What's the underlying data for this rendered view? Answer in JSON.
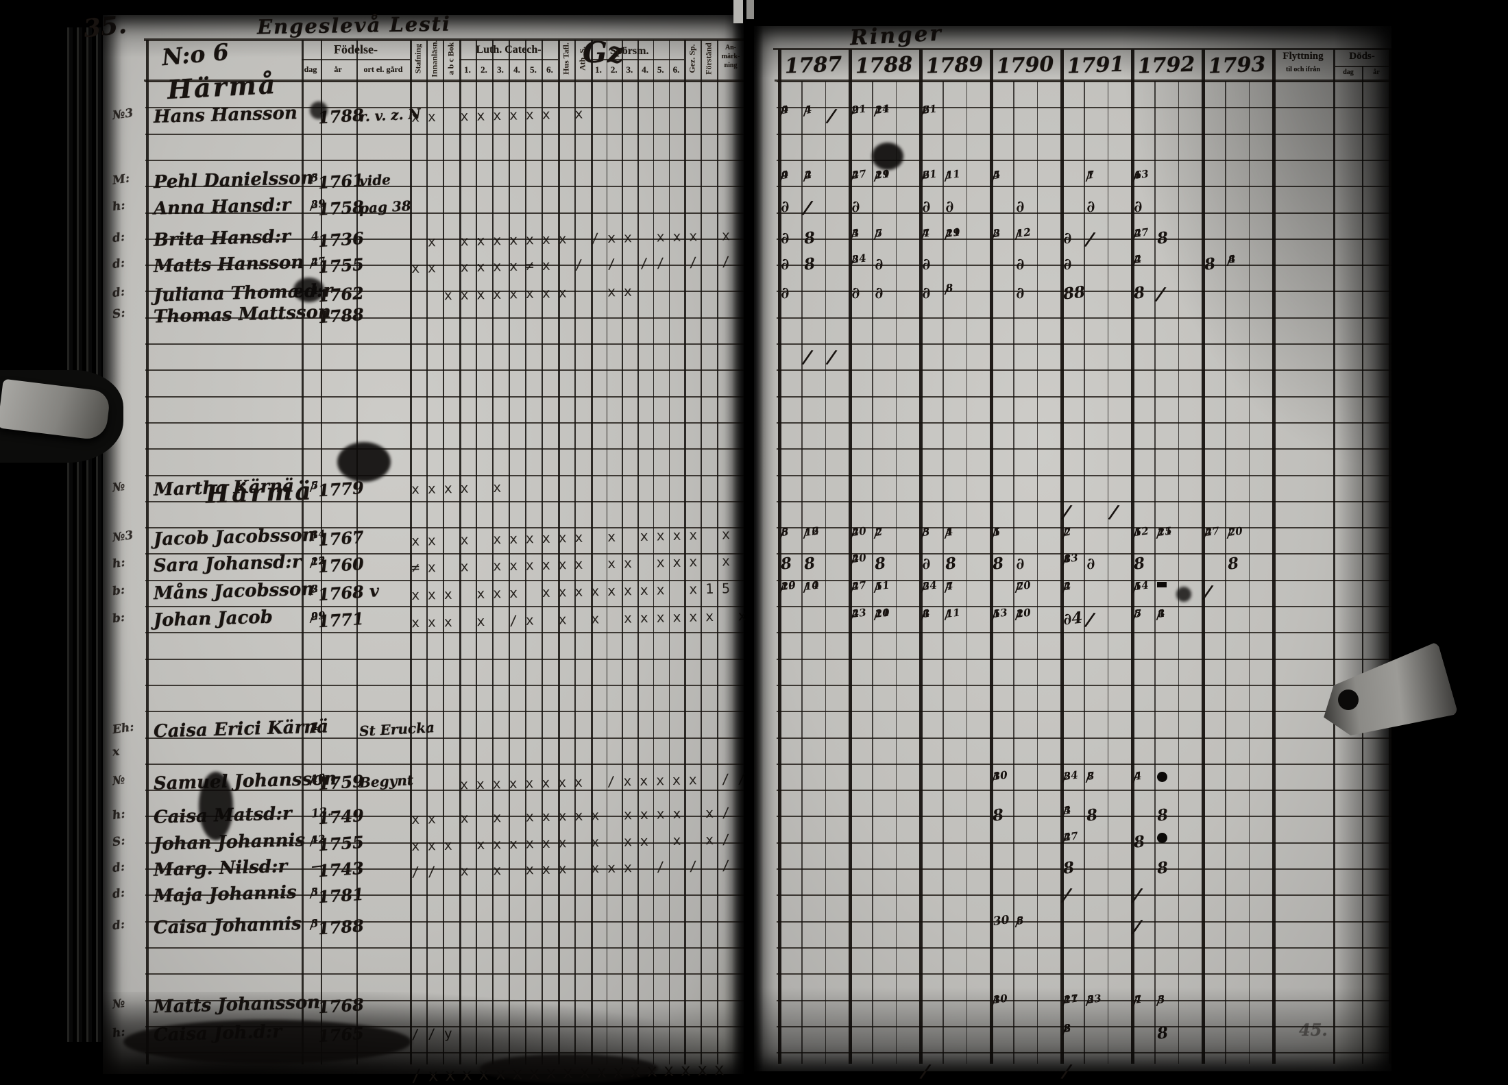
{
  "document": {
    "kind": "parish examination register spread",
    "left_page": {
      "page_number": "35.",
      "script_title": "Engeslevå Lesti",
      "household_no": "N:o 6",
      "farm_name": "Härmå",
      "farm_name_mid": "Härmä",
      "header": {
        "birth_group": "Födelse-",
        "birth_cols": [
          "dag",
          "år",
          "ort el. gård"
        ],
        "reading_cols": [
          "Stafning",
          "Innanläsn.",
          "a b c Bok"
        ],
        "luth_group": "Luth. Catech-",
        "luth_cols": [
          "1.",
          "2.",
          "3.",
          "4.",
          "5.",
          "6."
        ],
        "hus_tafl": "Hus Tafl.",
        "ath": "Ath. S.",
        "sporsm_script": "Gz",
        "sporsm_group": "Spörsm.",
        "sporsm_cols": [
          "1.",
          "2.",
          "3.",
          "4.",
          "5.",
          "6."
        ],
        "gez": "Gez. Sp.",
        "forstand": "Förständ",
        "anm_lines": [
          "An-",
          "märk-",
          "ning"
        ]
      },
      "rows": [
        {
          "row": 1.8,
          "m": "№3",
          "name": "Hans Hansson",
          "dag": "",
          "ar": "1788",
          "note": "r. v. z. N",
          "marks": "xx xxxxxx x",
          "start": 0
        },
        {
          "row": 4.3,
          "m": "M:",
          "name": "Pehl Danielsson",
          "dag": "5/3",
          "ar": "1761",
          "note": "vide",
          "marks": "",
          "start": 0
        },
        {
          "row": 5.3,
          "m": "h:",
          "name": "Anna Hansd:r",
          "dag": "29/3",
          "ar": "1758",
          "note": "pag 38",
          "marks": "",
          "start": 0
        },
        {
          "row": 6.5,
          "m": "d:",
          "name": "Brita Hansd:r",
          "dag": "4",
          "ar": "1736",
          "note": "",
          "marks": " x xxxxxxx /xx xxx x",
          "start": 0
        },
        {
          "row": 7.5,
          "m": "d:",
          "name": "Matts Hansson",
          "dag": "27/4",
          "ar": "1755",
          "note": "",
          "marks": "xx xxxx≠x / / // / /",
          "start": 0
        },
        {
          "row": 8.6,
          "m": "d:",
          "name": "Juliana Thomæd:r",
          "dag": "4/4",
          "ar": "1762",
          "note": "",
          "marks": "  xxxxxxxx  xx",
          "start": 0
        },
        {
          "row": 9.4,
          "m": "S:",
          "name": "Thomas Mattsson",
          "dag": "",
          "ar": "1788",
          "note": "",
          "marks": "",
          "start": 0
        },
        {
          "row": 16.0,
          "m": "№",
          "name": "Martha Kärnä",
          "dag": "5/7",
          "ar": "1779",
          "note": "",
          "marks": "xxxx x",
          "start": 0
        },
        {
          "row": 17.9,
          "m": "№3",
          "name": "Jacob Jacobsson",
          "dag": "14/3",
          "ar": "1767",
          "note": "",
          "marks": "xx x xxxxxx x xxxx x",
          "start": 0
        },
        {
          "row": 18.9,
          "m": "h:",
          "name": "Sara Johansd:r",
          "dag": "25/12",
          "ar": "1760",
          "note": "",
          "marks": "≠x x xxxxxx xx xxx x",
          "start": 0
        },
        {
          "row": 19.95,
          "m": "b:",
          "name": "Måns Jacobsson",
          "dag": "3/2",
          "ar": "1768 v",
          "note": "",
          "marks": "xxx xxx xxxxxxxx x15",
          "start": 0
        },
        {
          "row": 21.0,
          "m": "b:",
          "name": "Johan Jacob",
          "dag": "29/9",
          "ar": "1771",
          "note": "",
          "marks": "xxx x /x x x xxxxxx x",
          "start": 0
        },
        {
          "row": 25.2,
          "m": "Eh:",
          "name": "Caisa Erici Kärnä",
          "dag": "4/7",
          "ar": "",
          "note": "St Erucka",
          "marks": "",
          "start": 0
        },
        {
          "row": 26.1,
          "m": "x",
          "name": "",
          "dag": "",
          "ar": "",
          "note": "",
          "marks": "",
          "start": 0
        },
        {
          "row": 27.2,
          "m": "№",
          "name": "Samuel Johansson",
          "dag": "15/10",
          "ar": "1759",
          "note": "Begynt",
          "marks": "xxxxxxxx /xxxxx //",
          "start": 3
        },
        {
          "row": 28.5,
          "m": "h:",
          "name": "Caisa Matsd:r",
          "dag": "13.",
          "ar": "1749",
          "note": "",
          "marks": "xx x x xxxxx xxxx x/",
          "start": 0
        },
        {
          "row": 29.5,
          "m": "S:",
          "name": "Johan Johannis",
          "dag": "4/12",
          "ar": "1755",
          "note": "",
          "marks": "xxx xxxxxx x xx x x/",
          "start": 0
        },
        {
          "row": 30.5,
          "m": "d:",
          "name": "Marg. Nilsd:r",
          "dag": "—",
          "ar": "1743",
          "note": "",
          "marks": "// x x xxx xxx / / /",
          "start": 0
        },
        {
          "row": 31.5,
          "m": "d:",
          "name": "Maja Johannis",
          "dag": "3/5",
          "ar": "1781",
          "note": "",
          "marks": "",
          "start": 0
        },
        {
          "row": 32.7,
          "m": "d:",
          "name": "Caisa Johannis",
          "dag": "5/3",
          "ar": "1788",
          "note": "",
          "marks": "",
          "start": 0
        },
        {
          "row": 35.7,
          "m": "№",
          "name": "Matts Johansson",
          "dag": "",
          "ar": "1768",
          "note": "",
          "marks": "",
          "start": 0
        },
        {
          "row": 36.8,
          "m": "h:",
          "name": "Caisa Joh.d:r",
          "dag": "",
          "ar": "1765",
          "note": "",
          "marks": "//y",
          "start": 0
        },
        {
          "row": 38.2,
          "m": "",
          "name": "",
          "dag": "",
          "ar": "",
          "note": "",
          "marks": "/xxxxxxxxxxxxxxxxxx",
          "start": 0,
          "big": true
        }
      ]
    },
    "right_page": {
      "script_title": "Ringer",
      "years": [
        "1787",
        "1788",
        "1789",
        "1790",
        "1791",
        "1792",
        "1793"
      ],
      "flytt": {
        "title": "Flyttning",
        "sub": "til och ifrån"
      },
      "dods": {
        "title": "Döds-",
        "cols": [
          "dag",
          "år"
        ]
      },
      "corner_mark": "45.",
      "rows": [
        {
          "row": 1.8,
          "cells": [
            [
              0,
              0,
              "9/4"
            ],
            [
              0,
              1,
              "4/4"
            ],
            [
              0,
              2,
              "/"
            ],
            [
              1,
              0,
              "21/9"
            ],
            [
              1,
              1,
              "24/11"
            ],
            [
              2,
              0,
              "21/6"
            ]
          ]
        },
        {
          "row": 4.3,
          "cells": [
            [
              0,
              0,
              "9/4"
            ],
            [
              0,
              1,
              "4/2"
            ],
            [
              1,
              0,
              "27/4"
            ],
            [
              1,
              1,
              "29/11"
            ],
            [
              2,
              0,
              "21/6"
            ],
            [
              2,
              1,
              "1/11"
            ],
            [
              3,
              0,
              "5/4"
            ],
            [
              4,
              1,
              "7/1"
            ],
            [
              5,
              0,
              "13/6"
            ]
          ]
        },
        {
          "row": 5.3,
          "cells": [
            [
              0,
              0,
              "∂"
            ],
            [
              0,
              1,
              "/"
            ],
            [
              1,
              0,
              "∂"
            ],
            [
              2,
              0,
              "∂"
            ],
            [
              2,
              1,
              "∂"
            ],
            [
              3,
              1,
              "∂"
            ],
            [
              4,
              1,
              "∂"
            ],
            [
              5,
              0,
              "∂"
            ]
          ]
        },
        {
          "row": 6.5,
          "cells": [
            [
              0,
              0,
              "∂"
            ],
            [
              0,
              1,
              "8"
            ],
            [
              1,
              0,
              "4/3"
            ],
            [
              1,
              1,
              "5/7"
            ],
            [
              2,
              0,
              "7/4"
            ],
            [
              2,
              1,
              "29/11"
            ],
            [
              3,
              0,
              "2/3"
            ],
            [
              3,
              1,
              "12/12"
            ],
            [
              4,
              0,
              "∂"
            ],
            [
              4,
              1,
              "/"
            ],
            [
              5,
              0,
              "27/4"
            ],
            [
              5,
              1,
              "8"
            ]
          ]
        },
        {
          "row": 7.5,
          "cells": [
            [
              0,
              0,
              "∂"
            ],
            [
              0,
              1,
              "8"
            ],
            [
              1,
              0,
              "24/3"
            ],
            [
              1,
              1,
              "∂"
            ],
            [
              2,
              0,
              "∂"
            ],
            [
              3,
              1,
              "∂"
            ],
            [
              4,
              0,
              "∂"
            ],
            [
              5,
              0,
              "2/4"
            ],
            [
              6,
              0,
              "8"
            ],
            [
              6,
              1,
              "8/4"
            ]
          ]
        },
        {
          "row": 8.6,
          "cells": [
            [
              0,
              0,
              "∂"
            ],
            [
              1,
              0,
              "∂"
            ],
            [
              1,
              1,
              "∂"
            ],
            [
              2,
              0,
              "∂"
            ],
            [
              2,
              1,
              "8/8"
            ],
            [
              3,
              1,
              "∂"
            ],
            [
              4,
              0,
              "88"
            ],
            [
              5,
              0,
              "8"
            ],
            [
              5,
              1,
              "/"
            ]
          ]
        },
        {
          "row": 11.0,
          "cells": [
            [
              0,
              1,
              "/"
            ],
            [
              0,
              2,
              "/"
            ]
          ]
        },
        {
          "row": 16.9,
          "cells": [
            [
              4,
              0,
              "/"
            ],
            [
              4,
              2,
              "/"
            ]
          ]
        },
        {
          "row": 17.9,
          "cells": [
            [
              0,
              0,
              "8/5"
            ],
            [
              0,
              1,
              "16/12"
            ],
            [
              1,
              0,
              "20/4"
            ],
            [
              1,
              1,
              "2/7"
            ],
            [
              2,
              0,
              "3/5"
            ],
            [
              2,
              1,
              "1/4"
            ],
            [
              3,
              0,
              "1/5"
            ],
            [
              4,
              0,
              "7/2"
            ],
            [
              5,
              0,
              "12/5"
            ],
            [
              5,
              1,
              "25/11"
            ],
            [
              6,
              0,
              "27/4"
            ],
            [
              6,
              1,
              "20/7"
            ]
          ]
        },
        {
          "row": 18.9,
          "cells": [
            [
              0,
              0,
              "8"
            ],
            [
              0,
              1,
              "8"
            ],
            [
              1,
              0,
              "20/4"
            ],
            [
              1,
              1,
              "8"
            ],
            [
              2,
              0,
              "∂"
            ],
            [
              2,
              1,
              "8"
            ],
            [
              3,
              0,
              "8"
            ],
            [
              3,
              1,
              "∂"
            ],
            [
              4,
              0,
              "13/8"
            ],
            [
              4,
              1,
              "∂"
            ],
            [
              5,
              0,
              "8"
            ],
            [
              6,
              1,
              "8"
            ]
          ]
        },
        {
          "row": 19.95,
          "cells": [
            [
              0,
              0,
              "29/10"
            ],
            [
              0,
              1,
              "14/10"
            ],
            [
              1,
              0,
              "27/4"
            ],
            [
              1,
              1,
              "5/11"
            ],
            [
              2,
              0,
              "24/5"
            ],
            [
              2,
              1,
              "4/7"
            ],
            [
              3,
              1,
              "20/7"
            ],
            [
              4,
              0,
              "2/4"
            ],
            [
              5,
              0,
              "14/5"
            ],
            [
              5,
              1,
              "▪"
            ],
            [
              6,
              0,
              "/"
            ]
          ]
        },
        {
          "row": 21.0,
          "cells": [
            [
              1,
              0,
              "23/4"
            ],
            [
              1,
              1,
              "20/11"
            ],
            [
              2,
              0,
              "8/4"
            ],
            [
              2,
              1,
              "1/11"
            ],
            [
              3,
              0,
              "13/5"
            ],
            [
              3,
              1,
              "20/10"
            ],
            [
              4,
              0,
              "∂4"
            ],
            [
              4,
              1,
              "/"
            ],
            [
              5,
              0,
              "7/5"
            ],
            [
              5,
              1,
              "8/4"
            ]
          ]
        },
        {
          "row": 27.2,
          "cells": [
            [
              3,
              0,
              "30/10"
            ],
            [
              4,
              0,
              "24/3"
            ],
            [
              4,
              1,
              "7/8"
            ],
            [
              5,
              0,
              "4/4"
            ],
            [
              5,
              1,
              "●"
            ]
          ]
        },
        {
          "row": 28.5,
          "cells": [
            [
              3,
              0,
              "8"
            ],
            [
              4,
              0,
              "4/3"
            ],
            [
              4,
              1,
              "8"
            ],
            [
              5,
              1,
              "8"
            ]
          ]
        },
        {
          "row": 29.5,
          "cells": [
            [
              4,
              0,
              "27/4"
            ],
            [
              5,
              0,
              "8"
            ],
            [
              5,
              1,
              "●"
            ]
          ]
        },
        {
          "row": 30.5,
          "cells": [
            [
              4,
              0,
              "8"
            ],
            [
              5,
              1,
              "8"
            ]
          ]
        },
        {
          "row": 31.5,
          "cells": [
            [
              4,
              0,
              "/"
            ],
            [
              5,
              0,
              "/"
            ]
          ]
        },
        {
          "row": 32.7,
          "cells": [
            [
              3,
              0,
              "30"
            ],
            [
              3,
              1,
              "8/5"
            ],
            [
              5,
              0,
              "/"
            ]
          ]
        },
        {
          "row": 35.7,
          "cells": [
            [
              3,
              0,
              "30/10"
            ],
            [
              4,
              0,
              "27/11"
            ],
            [
              4,
              1,
              "23/5"
            ],
            [
              5,
              0,
              "4/7"
            ],
            [
              5,
              1,
              "5/3"
            ]
          ]
        },
        {
          "row": 36.8,
          "cells": [
            [
              4,
              0,
              "8/2"
            ],
            [
              5,
              1,
              "8"
            ]
          ]
        },
        {
          "row": 38.2,
          "cells": [
            [
              2,
              0,
              "/"
            ],
            [
              4,
              0,
              "/"
            ]
          ]
        }
      ]
    }
  }
}
